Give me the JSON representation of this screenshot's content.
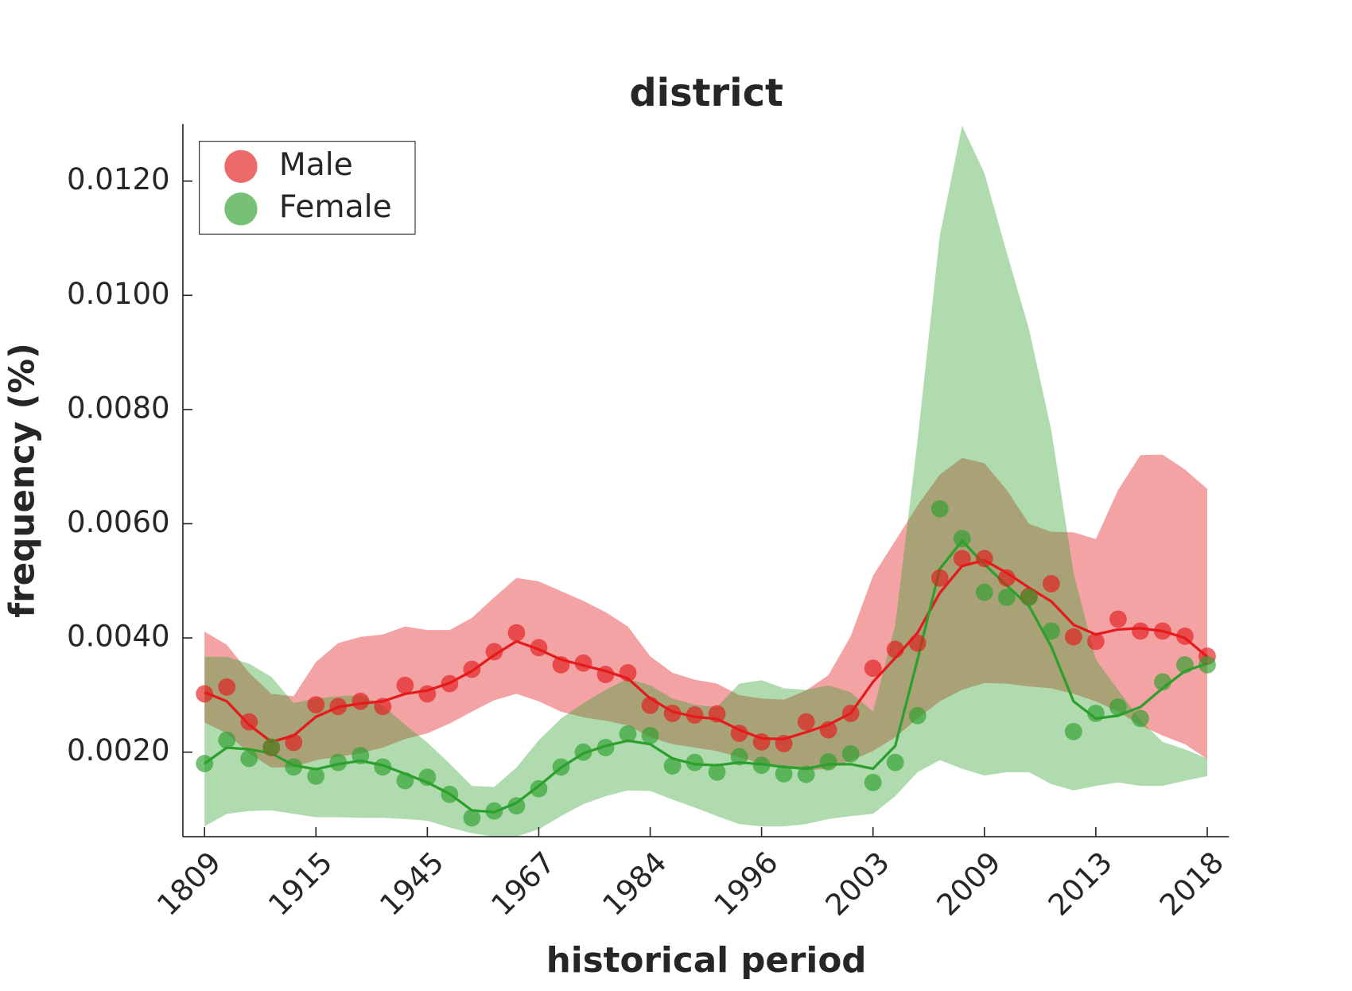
{
  "chart_data": {
    "type": "line",
    "title": "district",
    "x_label": "historical period",
    "y_label": "frequency (%)",
    "categories": [
      "1809",
      null,
      null,
      null,
      null,
      "1915",
      null,
      null,
      null,
      null,
      "1945",
      null,
      null,
      null,
      null,
      "1967",
      null,
      null,
      null,
      null,
      "1984",
      null,
      null,
      null,
      null,
      "1996",
      null,
      null,
      null,
      null,
      "2003",
      null,
      null,
      null,
      null,
      "2009",
      null,
      null,
      null,
      null,
      "2013",
      null,
      null,
      null,
      null,
      "2018"
    ],
    "ylim": [
      0.00052,
      0.013
    ],
    "yticks": [
      {
        "value": 0.002,
        "label": "0.0020"
      },
      {
        "value": 0.004,
        "label": "0.0040"
      },
      {
        "value": 0.006,
        "label": "0.0060"
      },
      {
        "value": 0.008,
        "label": "0.0080"
      },
      {
        "value": 0.01,
        "label": "0.0100"
      },
      {
        "value": 0.012,
        "label": "0.0120"
      }
    ],
    "grid": false,
    "legend": "upper left",
    "series": [
      {
        "name": "Male",
        "color": "#e41a1c",
        "values": [
          0.00302,
          0.00314,
          0.00253,
          0.00208,
          0.00217,
          0.00283,
          0.0028,
          0.00289,
          0.0028,
          0.00317,
          0.00302,
          0.0032,
          0.00345,
          0.00376,
          0.00409,
          0.00383,
          0.00353,
          0.00356,
          0.00336,
          0.00339,
          0.00282,
          0.00268,
          0.00265,
          0.00267,
          0.00233,
          0.00218,
          0.00215,
          0.00253,
          0.00239,
          0.00268,
          0.00347,
          0.0038,
          0.00391,
          0.00505,
          0.00539,
          0.00539,
          0.00505,
          0.00473,
          0.00495,
          0.00402,
          0.00394,
          0.00433,
          0.00412,
          0.00412,
          0.00403,
          0.00368
        ],
        "smooth": [
          0.00305,
          0.00289,
          0.00248,
          0.00218,
          0.00229,
          0.00262,
          0.00279,
          0.00285,
          0.00289,
          0.00302,
          0.00308,
          0.00321,
          0.00342,
          0.0037,
          0.00394,
          0.0038,
          0.00362,
          0.00352,
          0.00342,
          0.00329,
          0.00294,
          0.00271,
          0.00262,
          0.00258,
          0.00239,
          0.00224,
          0.00223,
          0.00235,
          0.00248,
          0.00268,
          0.00323,
          0.00365,
          0.00409,
          0.00479,
          0.00526,
          0.00536,
          0.00514,
          0.00488,
          0.00464,
          0.00423,
          0.00406,
          0.00415,
          0.00417,
          0.00412,
          0.004,
          0.00367
        ],
        "band_high": [
          0.00411,
          0.00388,
          0.00339,
          0.00302,
          0.00298,
          0.00358,
          0.00391,
          0.00402,
          0.00406,
          0.0042,
          0.00414,
          0.00414,
          0.00435,
          0.00471,
          0.00505,
          0.00499,
          0.00482,
          0.00465,
          0.00445,
          0.0042,
          0.00368,
          0.00339,
          0.00327,
          0.0032,
          0.003,
          0.00294,
          0.00292,
          0.00308,
          0.00335,
          0.00403,
          0.00509,
          0.0057,
          0.00632,
          0.00686,
          0.00715,
          0.00706,
          0.00659,
          0.006,
          0.00586,
          0.00585,
          0.00573,
          0.00659,
          0.0072,
          0.00721,
          0.00695,
          0.00661
        ],
        "band_low": [
          0.00252,
          0.00233,
          0.00198,
          0.00173,
          0.00174,
          0.00186,
          0.00192,
          0.00198,
          0.00208,
          0.00223,
          0.00233,
          0.0025,
          0.00271,
          0.00291,
          0.00302,
          0.00289,
          0.00271,
          0.00261,
          0.00255,
          0.00247,
          0.00226,
          0.00214,
          0.00208,
          0.00202,
          0.00191,
          0.0018,
          0.00173,
          0.00168,
          0.00171,
          0.00185,
          0.00202,
          0.00226,
          0.00259,
          0.00289,
          0.00309,
          0.00321,
          0.0032,
          0.00315,
          0.00312,
          0.00302,
          0.00289,
          0.00271,
          0.00247,
          0.00229,
          0.00214,
          0.00188
        ]
      },
      {
        "name": "Female",
        "color": "#2ca02c",
        "values": [
          0.0018,
          0.00221,
          0.00189,
          0.00209,
          0.00174,
          0.00158,
          0.00182,
          0.00194,
          0.00174,
          0.0015,
          0.00156,
          0.00126,
          0.00085,
          0.00097,
          0.00106,
          0.00136,
          0.00174,
          0.002,
          0.00208,
          0.00232,
          0.00229,
          0.00176,
          0.00182,
          0.00165,
          0.00192,
          0.00177,
          0.00162,
          0.00161,
          0.00183,
          0.00197,
          0.00147,
          0.00182,
          0.00264,
          0.00626,
          0.00574,
          0.0048,
          0.00471,
          0.00471,
          0.00412,
          0.00236,
          0.00268,
          0.00279,
          0.00259,
          0.00323,
          0.00353,
          0.00353
        ],
        "smooth": [
          0.0018,
          0.00208,
          0.00205,
          0.00198,
          0.00177,
          0.0017,
          0.00179,
          0.00185,
          0.00177,
          0.00162,
          0.00147,
          0.00127,
          0.00098,
          0.00095,
          0.00111,
          0.00141,
          0.00173,
          0.00198,
          0.00211,
          0.0022,
          0.00214,
          0.00189,
          0.00179,
          0.00177,
          0.00182,
          0.00179,
          0.00174,
          0.00171,
          0.00179,
          0.00179,
          0.00171,
          0.00211,
          0.00362,
          0.00521,
          0.0057,
          0.00529,
          0.00492,
          0.00456,
          0.00385,
          0.00289,
          0.00259,
          0.00264,
          0.00279,
          0.00312,
          0.00342,
          0.00355
        ],
        "band_high": [
          0.00367,
          0.00367,
          0.00355,
          0.00332,
          0.00286,
          0.00294,
          0.00298,
          0.003,
          0.00282,
          0.00248,
          0.00217,
          0.0018,
          0.00141,
          0.00139,
          0.00173,
          0.00221,
          0.00259,
          0.00286,
          0.00309,
          0.00329,
          0.00317,
          0.00294,
          0.00283,
          0.00279,
          0.0032,
          0.00326,
          0.00312,
          0.00309,
          0.00317,
          0.00305,
          0.00271,
          0.00423,
          0.00746,
          0.01105,
          0.01297,
          0.01214,
          0.01075,
          0.00941,
          0.00764,
          0.00514,
          0.00362,
          0.00309,
          0.00256,
          0.00218,
          0.00205,
          0.00189
        ],
        "band_low": [
          0.0007,
          0.00092,
          0.00097,
          0.00098,
          0.00092,
          0.00086,
          0.00086,
          0.00085,
          0.00085,
          0.00083,
          0.0008,
          0.00068,
          0.00058,
          0.00052,
          0.00052,
          0.00065,
          0.00088,
          0.00109,
          0.00123,
          0.00133,
          0.00132,
          0.00117,
          0.00103,
          0.00088,
          0.00074,
          0.0007,
          0.0007,
          0.00074,
          0.00083,
          0.00088,
          0.00092,
          0.00123,
          0.00165,
          0.00186,
          0.00171,
          0.00159,
          0.00165,
          0.00165,
          0.00144,
          0.00133,
          0.00141,
          0.00147,
          0.00141,
          0.00141,
          0.0015,
          0.00158
        ]
      }
    ]
  }
}
